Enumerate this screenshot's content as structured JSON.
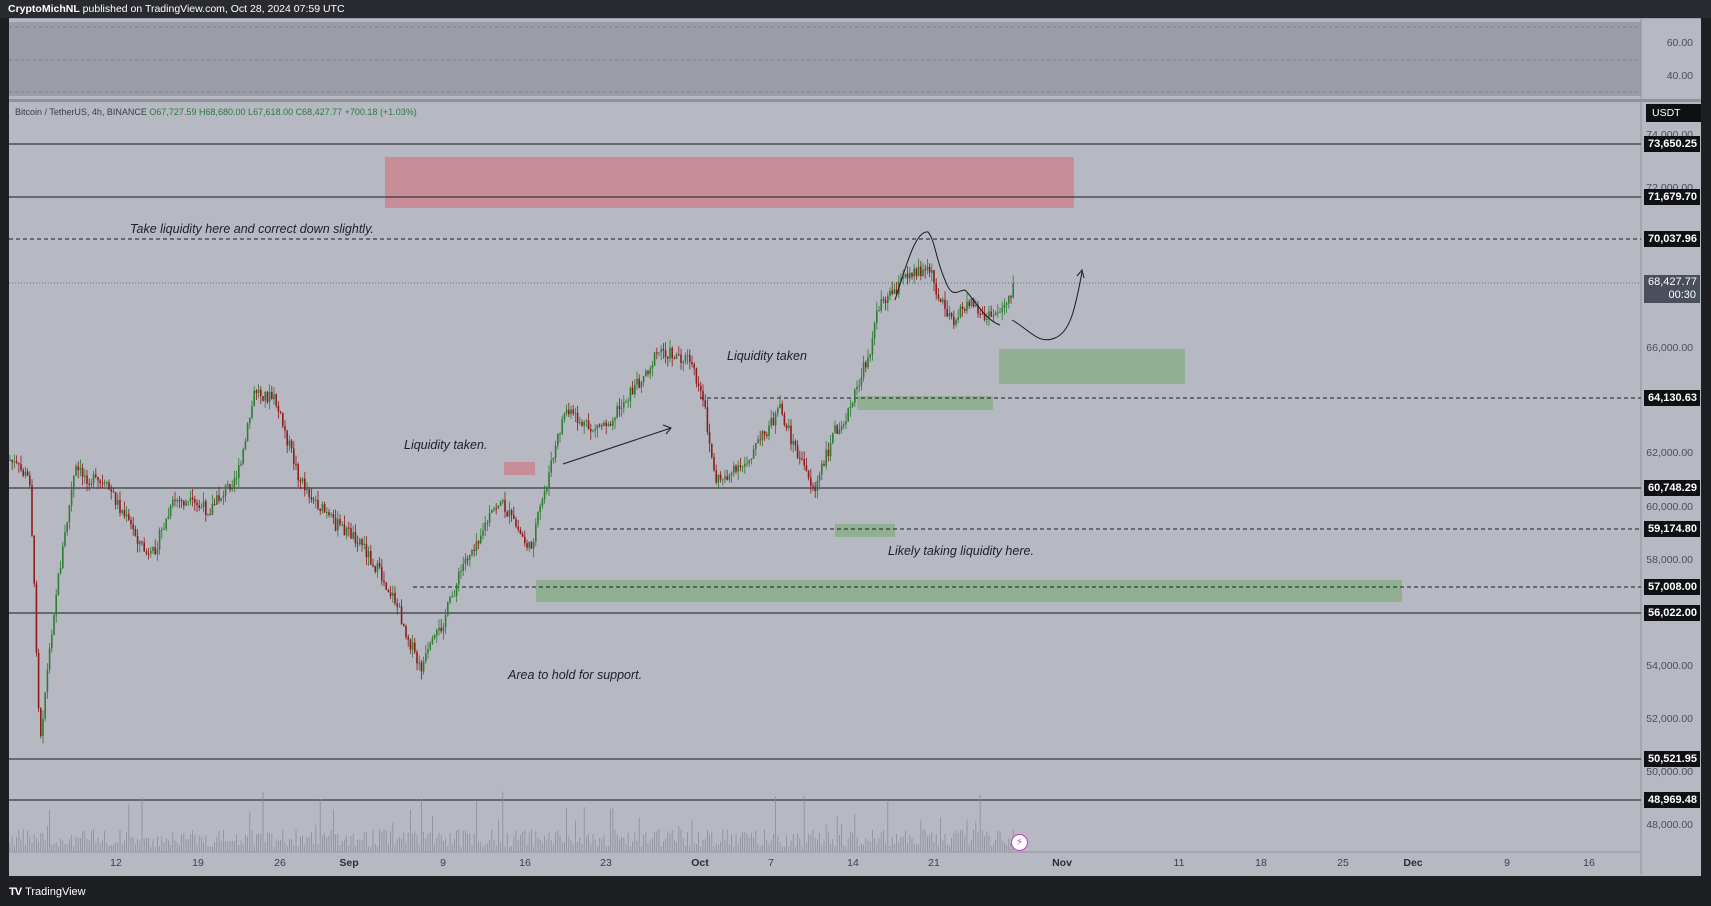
{
  "header": {
    "publisher": "CryptoMichNL",
    "published_text": "published on TradingView.com, Oct 28, 2024 07:59 UTC"
  },
  "symbol": {
    "name": "Bitcoin / TetherUS, 4h, BINANCE",
    "open": "O67,727.59",
    "high": "H68,680.00",
    "low": "L67,618.00",
    "close": "C68,427.77",
    "change": "+700.18 (+1.03%)"
  },
  "currency_badge": "USDT",
  "oscillator_axis": [
    "60.00",
    "40.00"
  ],
  "price_axis": [
    "74,000.00",
    "72,000.00",
    "66,000.00",
    "62,000.00",
    "60,000.00",
    "58,000.00",
    "54,000.00",
    "52,000.00",
    "50,000.00",
    "48,000.00"
  ],
  "level_tags": {
    "l73650": "73,650.25",
    "l71679": "71,679.70",
    "l70037": "70,037.96",
    "l64130": "64,130.63",
    "l60748": "60,748.29",
    "l59174": "59,174.80",
    "l57008": "57,008.00",
    "l56022": "56,022.00",
    "l50521": "50,521.95",
    "l48969": "48,969.48"
  },
  "current_price": "68,427.77",
  "countdown": "00:30",
  "annotations": {
    "take_liquidity": "Take liquidity here and correct down slightly.",
    "liquidity_taken_mid": "Liquidity taken",
    "liquidity_taken_left": "Liquidity taken.",
    "likely_taking": "Likely taking liquidity here.",
    "area_support": "Area to hold for support."
  },
  "time_axis": [
    "12",
    "19",
    "26",
    "Sep",
    "9",
    "16",
    "23",
    "Oct",
    "7",
    "14",
    "21",
    "Nov",
    "11",
    "18",
    "25",
    "Dec",
    "9",
    "16"
  ],
  "footer": {
    "brand": "TradingView"
  },
  "colors": {
    "chart_bg": "#b6b8c2",
    "up_candle": "#2e7d32",
    "down_candle": "#8e1c1c",
    "resistance_zone": "#c98a95",
    "support_zone": "#8faf8f"
  }
}
